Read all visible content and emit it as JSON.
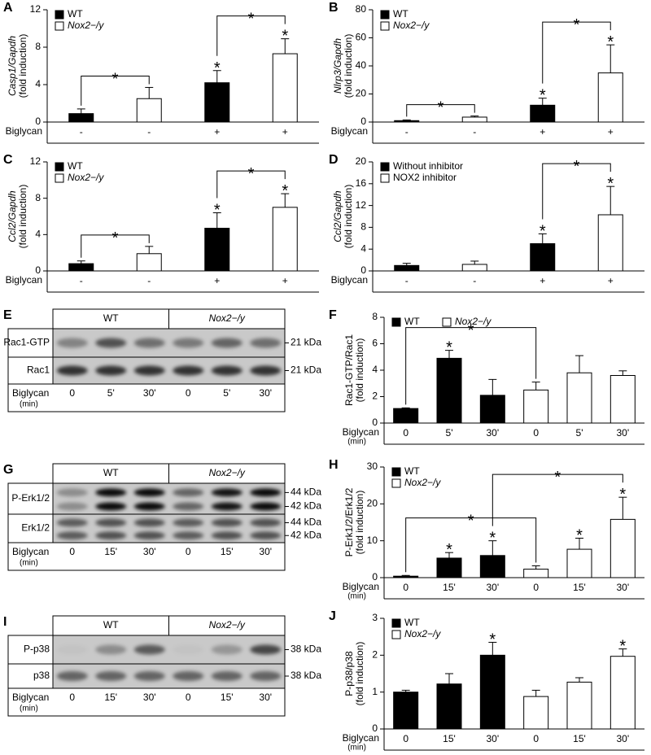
{
  "chart_data": [
    {
      "panel": "A",
      "type": "bar",
      "ylabel": "Casp1/Gapdh",
      "ylabel_italic": true,
      "ylabel2": "(fold induction)",
      "x_label": "Biglycan",
      "categories": [
        "-",
        "-",
        "+",
        "+"
      ],
      "ylim": [
        0,
        12
      ],
      "yticks": [
        0,
        4,
        8,
        12
      ],
      "legend": "upper left",
      "legend_direction": "column",
      "series": [
        {
          "name": "WT",
          "color": "#000000",
          "values": [
            0.9,
            null,
            4.2,
            null
          ],
          "errors": [
            0.5,
            null,
            1.3,
            null
          ],
          "stars": [
            null,
            null,
            "*",
            null
          ]
        },
        {
          "name": "Nox2−/y",
          "italic": true,
          "color": "#ffffff",
          "values": [
            null,
            2.5,
            null,
            7.3
          ],
          "errors": [
            null,
            1.2,
            null,
            1.6
          ],
          "stars": [
            null,
            null,
            null,
            "*"
          ]
        }
      ],
      "brackets": [
        {
          "from": 0,
          "to": 1,
          "label": "*"
        },
        {
          "from": 2,
          "to": 3,
          "label": "*"
        }
      ]
    },
    {
      "panel": "B",
      "type": "bar",
      "ylabel": "Nlrp3/Gapdh",
      "ylabel_italic": true,
      "ylabel2": "(fold induction)",
      "x_label": "Biglycan",
      "categories": [
        "-",
        "-",
        "+",
        "+"
      ],
      "ylim": [
        0,
        80
      ],
      "yticks": [
        0,
        20,
        40,
        60,
        80
      ],
      "legend": "upper left",
      "legend_direction": "column",
      "series": [
        {
          "name": "WT",
          "color": "#000000",
          "values": [
            1,
            null,
            12,
            null
          ],
          "errors": [
            0.5,
            null,
            5,
            null
          ],
          "stars": [
            null,
            null,
            "*",
            null
          ]
        },
        {
          "name": "Nox2−/y",
          "italic": true,
          "color": "#ffffff",
          "values": [
            null,
            3.5,
            null,
            35
          ],
          "errors": [
            null,
            0.8,
            null,
            20
          ],
          "stars": [
            null,
            null,
            null,
            "*"
          ]
        }
      ],
      "brackets": [
        {
          "from": 0,
          "to": 1,
          "label": "*"
        },
        {
          "from": 2,
          "to": 3,
          "label": "*"
        }
      ]
    },
    {
      "panel": "C",
      "type": "bar",
      "ylabel": "Ccl2/Gapdh",
      "ylabel_italic": true,
      "ylabel2": "(fold induction)",
      "x_label": "Biglycan",
      "categories": [
        "-",
        "-",
        "+",
        "+"
      ],
      "ylim": [
        0,
        12
      ],
      "yticks": [
        0,
        4,
        8,
        12
      ],
      "legend": "upper left",
      "legend_direction": "column",
      "series": [
        {
          "name": "WT",
          "color": "#000000",
          "values": [
            0.8,
            null,
            4.7,
            null
          ],
          "errors": [
            0.3,
            null,
            1.7,
            null
          ],
          "stars": [
            null,
            null,
            "*",
            null
          ]
        },
        {
          "name": "Nox2−/y",
          "italic": true,
          "color": "#ffffff",
          "values": [
            null,
            1.9,
            null,
            7.0
          ],
          "errors": [
            null,
            0.8,
            null,
            1.5
          ],
          "stars": [
            null,
            null,
            null,
            "*"
          ]
        }
      ],
      "brackets": [
        {
          "from": 0,
          "to": 1,
          "label": "*"
        },
        {
          "from": 2,
          "to": 3,
          "label": "*"
        }
      ]
    },
    {
      "panel": "D",
      "type": "bar",
      "ylabel": "Ccl2/Gapdh",
      "ylabel_italic": true,
      "ylabel2": "(fold induction)",
      "x_label": "Biglycan",
      "categories": [
        "-",
        "-",
        "+",
        "+"
      ],
      "ylim": [
        0,
        20
      ],
      "yticks": [
        0,
        4,
        8,
        12,
        16,
        20
      ],
      "legend": "upper left",
      "legend_direction": "column",
      "series": [
        {
          "name": "Without inhibitor",
          "color": "#000000",
          "values": [
            1.0,
            null,
            5.0,
            null
          ],
          "errors": [
            0.4,
            null,
            1.8,
            null
          ],
          "stars": [
            null,
            null,
            "*",
            null
          ]
        },
        {
          "name": "NOX2 inhibitor",
          "color": "#ffffff",
          "values": [
            null,
            1.2,
            null,
            10.3
          ],
          "errors": [
            null,
            0.6,
            null,
            5.2
          ],
          "stars": [
            null,
            null,
            null,
            "*"
          ]
        }
      ],
      "brackets": [
        {
          "from": 2,
          "to": 3,
          "label": "*"
        }
      ]
    },
    {
      "panel": "F",
      "type": "bar",
      "ylabel": "Rac1-GTP/Rac1",
      "ylabel2": "(fold induction)",
      "x_label": "Biglycan",
      "x_unit": "(min)",
      "categories": [
        "0",
        "5'",
        "30'",
        "0",
        "5'",
        "30'"
      ],
      "ylim": [
        0,
        8
      ],
      "yticks": [
        0,
        2,
        4,
        6,
        8
      ],
      "legend": "upper left",
      "legend_direction": "row",
      "series": [
        {
          "name": "WT",
          "color": "#000000",
          "values": [
            1.1,
            4.9,
            2.1,
            null,
            null,
            null
          ],
          "errors": [
            0.05,
            0.6,
            1.2,
            null,
            null,
            null
          ],
          "stars": [
            null,
            "*",
            null,
            null,
            null,
            null
          ]
        },
        {
          "name": "Nox2−/y",
          "italic": true,
          "color": "#ffffff",
          "values": [
            null,
            null,
            null,
            2.5,
            3.8,
            3.6
          ],
          "errors": [
            null,
            null,
            null,
            0.6,
            1.3,
            0.35
          ],
          "stars": [
            null,
            null,
            null,
            null,
            null,
            null
          ]
        }
      ],
      "brackets": [
        {
          "from": 0,
          "to": 3,
          "label": "*"
        }
      ]
    },
    {
      "panel": "H",
      "type": "bar",
      "ylabel": "P-Erk1/2/Erk1/2",
      "ylabel2": "(fold induction)",
      "x_label": "Biglycan",
      "x_unit": "(min)",
      "categories": [
        "0",
        "15'",
        "30'",
        "0",
        "15'",
        "30'"
      ],
      "ylim": [
        0,
        30
      ],
      "yticks": [
        0,
        10,
        20,
        30
      ],
      "legend": "upper left",
      "legend_direction": "column",
      "series": [
        {
          "name": "WT",
          "color": "#000000",
          "values": [
            0.4,
            5.3,
            6.0,
            null,
            null,
            null
          ],
          "errors": [
            0.2,
            1.5,
            4,
            null,
            null,
            null
          ],
          "stars": [
            null,
            "*",
            "*",
            null,
            null,
            null
          ]
        },
        {
          "name": "Nox2−/y",
          "italic": true,
          "color": "#ffffff",
          "values": [
            null,
            null,
            null,
            2.3,
            7.7,
            15.8
          ],
          "errors": [
            null,
            null,
            null,
            0.9,
            3,
            6
          ],
          "stars": [
            null,
            null,
            null,
            null,
            "*",
            "*"
          ]
        }
      ],
      "brackets": [
        {
          "from": 0,
          "to": 3,
          "label": "*"
        },
        {
          "from": 2,
          "to": 5,
          "label": "*"
        }
      ]
    },
    {
      "panel": "J",
      "type": "bar",
      "ylabel": "P-p38/p38",
      "ylabel2": "(fold induction)",
      "x_label": "Biglycan",
      "x_unit": "(min)",
      "categories": [
        "0",
        "15'",
        "30'",
        "0",
        "15'",
        "30'"
      ],
      "ylim": [
        0,
        3
      ],
      "yticks": [
        0,
        1,
        2,
        3
      ],
      "legend": "upper left",
      "legend_direction": "column",
      "series": [
        {
          "name": "WT",
          "color": "#000000",
          "values": [
            1.0,
            1.22,
            2.0,
            null,
            null,
            null
          ],
          "errors": [
            0.05,
            0.28,
            0.35,
            null,
            null,
            null
          ],
          "stars": [
            null,
            null,
            "*",
            null,
            null,
            null
          ]
        },
        {
          "name": "Nox2−/y",
          "italic": true,
          "color": "#ffffff",
          "values": [
            null,
            null,
            null,
            0.88,
            1.27,
            1.97
          ],
          "errors": [
            null,
            null,
            null,
            0.17,
            0.12,
            0.2
          ],
          "stars": [
            null,
            null,
            null,
            null,
            null,
            "*"
          ]
        }
      ],
      "brackets": []
    }
  ],
  "blots": [
    {
      "panel": "E",
      "groups": [
        {
          "label": "WT"
        },
        {
          "label": "Nox2−/y",
          "italic": true
        }
      ],
      "rows": [
        {
          "label": "Rac1-GTP",
          "markers": [
            "21 kDa"
          ]
        },
        {
          "label": "Rac1",
          "markers": [
            "21 kDa"
          ]
        }
      ],
      "x_label": "Biglycan",
      "x_unit": "(min)",
      "lanes": [
        "0",
        "5'",
        "30'",
        "0",
        "5'",
        "30'"
      ]
    },
    {
      "panel": "G",
      "groups": [
        {
          "label": "WT"
        },
        {
          "label": "Nox2−/y",
          "italic": true
        }
      ],
      "rows": [
        {
          "label": "P-Erk1/2",
          "markers": [
            "44 kDa",
            "42 kDa"
          ]
        },
        {
          "label": "Erk1/2",
          "markers": [
            "44 kDa",
            "42 kDa"
          ]
        }
      ],
      "x_label": "Biglycan",
      "x_unit": "(min)",
      "lanes": [
        "0",
        "15'",
        "30'",
        "0",
        "15'",
        "30'"
      ]
    },
    {
      "panel": "I",
      "groups": [
        {
          "label": "WT"
        },
        {
          "label": "Nox2−/y",
          "italic": true
        }
      ],
      "rows": [
        {
          "label": "P-p38",
          "markers": [
            "38 kDa"
          ]
        },
        {
          "label": "p38",
          "markers": [
            "38 kDa"
          ]
        }
      ],
      "x_label": "Biglycan",
      "x_unit": "(min)",
      "lanes": [
        "0",
        "15'",
        "30'",
        "0",
        "15'",
        "30'"
      ]
    }
  ]
}
